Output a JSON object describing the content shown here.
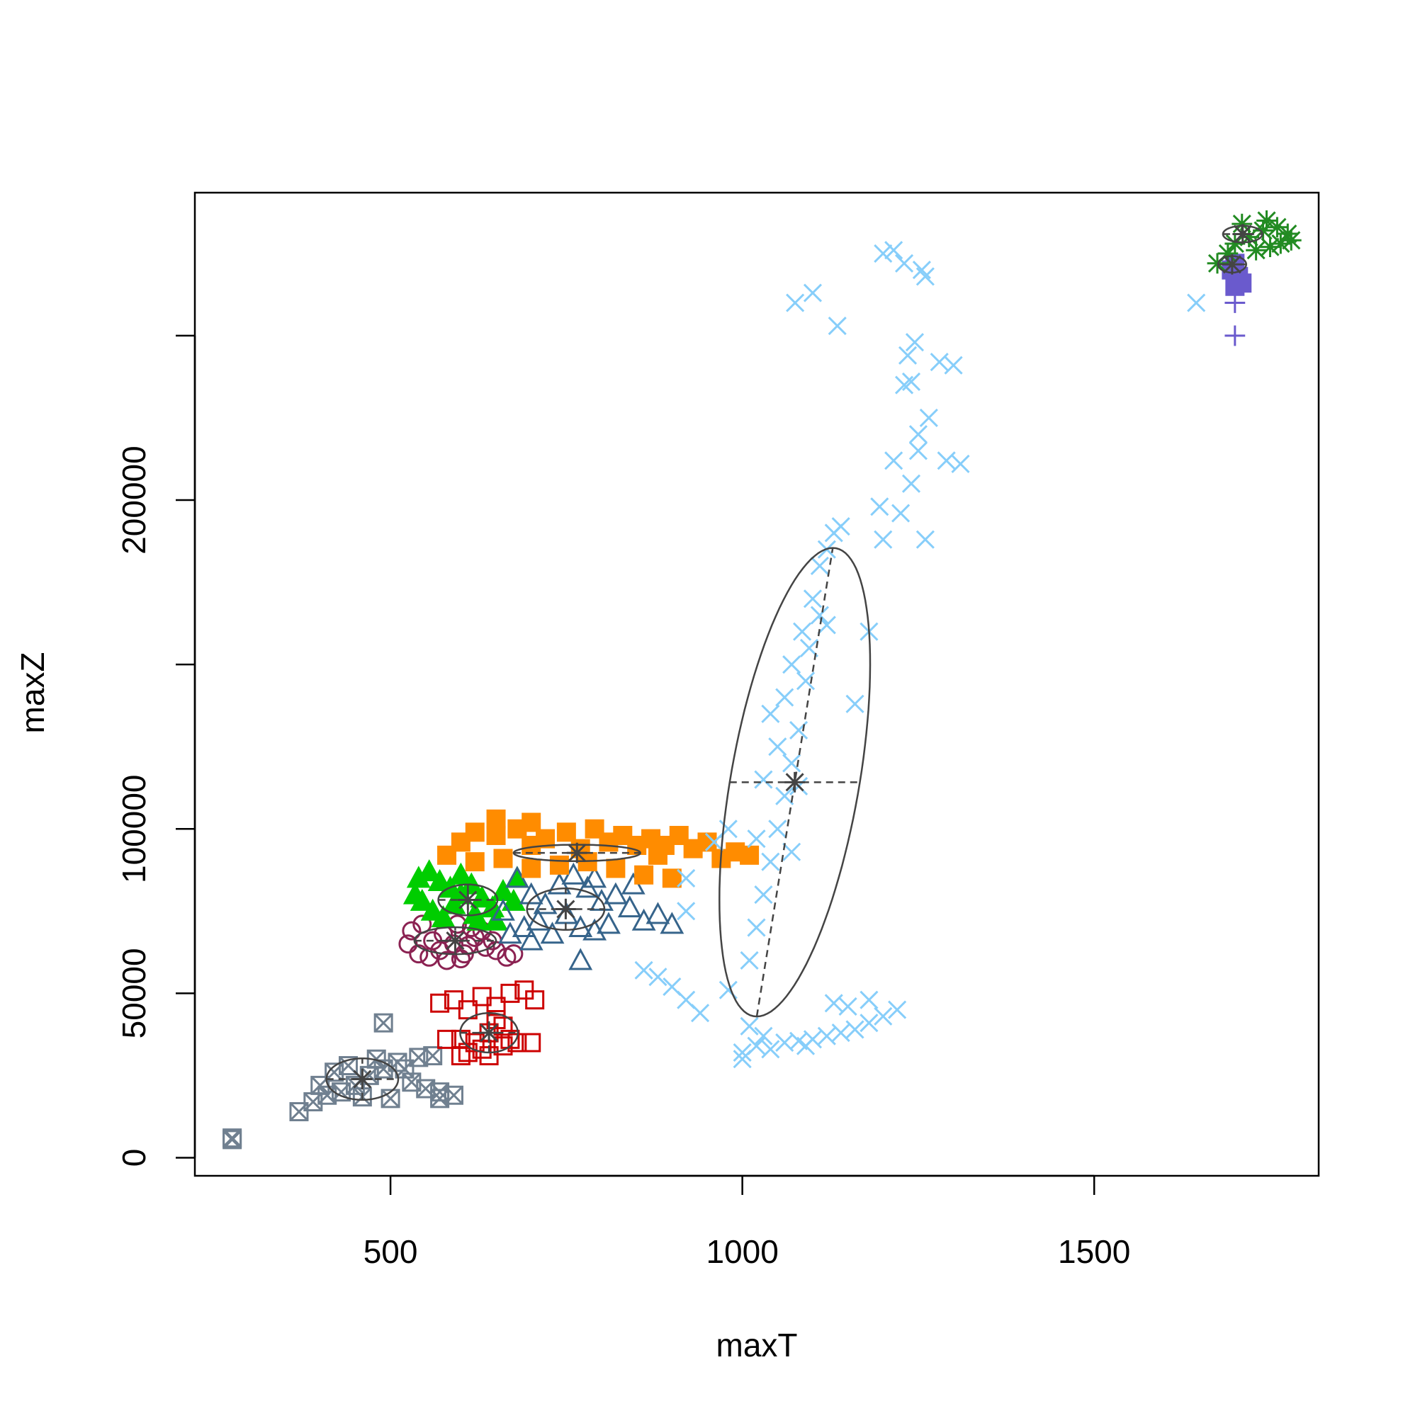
{
  "chart_data": {
    "type": "scatter",
    "xlabel": "maxT",
    "ylabel": "maxZ",
    "xlim": [
      222,
      1819
    ],
    "ylim": [
      -5500,
      293500
    ],
    "xticks": [
      500,
      1000,
      1500
    ],
    "yticks": [
      0,
      50000,
      100000,
      200000
    ],
    "yticks_unlabeled": [
      150000,
      250000
    ],
    "series": [
      {
        "color": "#708090",
        "marker": "square-x",
        "x": [
          275,
          275,
          370,
          390,
          410,
          430,
          450,
          470,
          490,
          480,
          510,
          530,
          550,
          570,
          590,
          490,
          540,
          560,
          420,
          440,
          460,
          500,
          400,
          520,
          570
        ],
        "y": [
          6000,
          5500,
          14000,
          17000,
          19000,
          20000,
          22000,
          25000,
          27000,
          30000,
          29000,
          23000,
          21000,
          20000,
          19000,
          41000,
          30500,
          31000,
          26000,
          28000,
          18500,
          18000,
          22000,
          27000,
          18000
        ],
        "ellipse": {
          "center": [
            460,
            23900
          ],
          "a1": [
            0,
            6300
          ],
          "a2": [
            51,
            0
          ]
        }
      },
      {
        "color": "#cd0000",
        "marker": "square",
        "x": [
          570,
          590,
          610,
          630,
          650,
          670,
          690,
          705,
          600,
          620,
          640,
          660,
          680,
          700,
          580,
          610,
          640,
          660,
          650,
          630,
          670,
          600
        ],
        "y": [
          47000,
          48000,
          45000,
          49000,
          46000,
          50000,
          51000,
          48000,
          36000,
          35000,
          38000,
          34000,
          35000,
          35000,
          36000,
          32000,
          31000,
          40000,
          42000,
          33000,
          36000,
          31000
        ],
        "ellipse": {
          "center": [
            640,
            38000
          ],
          "a1": [
            0,
            6000
          ],
          "a2": [
            41,
            0
          ]
        }
      },
      {
        "color": "#8b2252",
        "marker": "circle",
        "x": [
          530,
          545,
          560,
          575,
          590,
          605,
          620,
          635,
          650,
          665,
          675,
          540,
          555,
          580,
          600,
          615,
          630,
          645,
          525,
          570,
          595,
          610
        ],
        "y": [
          69000,
          71000,
          66000,
          68000,
          65000,
          62000,
          67000,
          64000,
          63000,
          61000,
          62000,
          62000,
          61000,
          60000,
          60500,
          70000,
          69000,
          66000,
          65000,
          63000,
          71000,
          64500
        ],
        "ellipse": {
          "center": [
            592,
            66000
          ],
          "a1": [
            0,
            4100
          ],
          "a2": [
            58,
            0
          ]
        }
      },
      {
        "color": "#00cd00",
        "marker": "triangle-filled",
        "x": [
          540,
          555,
          570,
          585,
          600,
          615,
          630,
          645,
          660,
          675,
          545,
          560,
          575,
          590,
          620,
          650,
          680,
          535,
          600,
          625
        ],
        "y": [
          85000,
          87000,
          84000,
          82000,
          80000,
          83000,
          79000,
          76000,
          81000,
          78000,
          78000,
          75000,
          73000,
          77000,
          74000,
          72000,
          85000,
          80000,
          86000,
          72000
        ],
        "ellipse": {
          "center": [
            610,
            78400
          ],
          "a1": [
            0,
            4700
          ],
          "a2": [
            42,
            0
          ]
        }
      },
      {
        "color": "#36648b",
        "marker": "triangle",
        "x": [
          660,
          680,
          700,
          720,
          740,
          760,
          780,
          800,
          820,
          840,
          860,
          880,
          900,
          690,
          710,
          730,
          750,
          770,
          790,
          810,
          770,
          670,
          845,
          700,
          790
        ],
        "y": [
          75000,
          85000,
          80000,
          77000,
          83000,
          86000,
          82000,
          78000,
          80000,
          76000,
          72000,
          74000,
          71000,
          70000,
          72000,
          68000,
          74000,
          70000,
          69000,
          71000,
          60000,
          68000,
          83000,
          66000,
          85000
        ],
        "ellipse": {
          "center": [
            749,
            75600
          ],
          "a1": [
            0,
            6300
          ],
          "a2": [
            55,
            0
          ]
        }
      },
      {
        "color": "#ff8c00",
        "marker": "square-filled",
        "x": [
          600,
          620,
          650,
          680,
          700,
          720,
          750,
          770,
          790,
          810,
          830,
          850,
          870,
          890,
          910,
          930,
          950,
          970,
          990,
          1010,
          580,
          620,
          660,
          700,
          740,
          780,
          820,
          860,
          900,
          880,
          650,
          700
        ],
        "y": [
          96000,
          99000,
          98000,
          100000,
          95000,
          97000,
          99000,
          94000,
          100000,
          96000,
          98000,
          95000,
          97000,
          95000,
          98000,
          94000,
          96000,
          91000,
          93000,
          92000,
          92000,
          90000,
          91000,
          88000,
          89000,
          90000,
          88000,
          86000,
          85000,
          92000,
          103000,
          102000
        ],
        "ellipse": {
          "center": [
            765,
            92700
          ],
          "a1": [
            0,
            2500
          ],
          "a2": [
            90,
            0
          ]
        }
      },
      {
        "color": "#87cefa",
        "marker": "x",
        "x": [
          1000,
          1020,
          1040,
          1060,
          1080,
          1100,
          1120,
          1140,
          1160,
          1180,
          1200,
          1220,
          1130,
          1180,
          1150,
          1010,
          1030,
          980,
          1000,
          1090,
          880,
          900,
          920,
          940,
          860,
          1010,
          1020,
          1030,
          1040,
          1050,
          1060,
          1070,
          1080,
          1050,
          1060,
          1070,
          1085,
          1100,
          1110,
          1120,
          1130,
          1140,
          1040,
          1030,
          1090,
          1095,
          1110,
          1180,
          1160,
          1120,
          1020,
          980,
          960,
          920,
          920,
          1070,
          1080,
          1195,
          1200,
          1225,
          1240,
          1260,
          1250,
          1265,
          1290,
          1310,
          1215,
          1230,
          1245,
          1280,
          1235,
          1240,
          1300,
          1250,
          1075,
          1100,
          1135,
          1215,
          1230,
          1255,
          1260,
          1200,
          1645
        ],
        "y": [
          32000,
          34000,
          33000,
          35000,
          35500,
          36000,
          37000,
          38000,
          39000,
          41000,
          43000,
          45000,
          47000,
          48000,
          46000,
          40000,
          37000,
          51000,
          30000,
          34000,
          55000,
          52000,
          48000,
          44000,
          57000,
          60000,
          70000,
          80000,
          90000,
          100000,
          110000,
          120000,
          130000,
          125000,
          140000,
          150000,
          160000,
          170000,
          180000,
          185000,
          190000,
          192000,
          135000,
          115000,
          145000,
          155000,
          165000,
          160000,
          138000,
          162000,
          97000,
          100000,
          96000,
          85000,
          75000,
          93000,
          113000,
          198000,
          188000,
          196000,
          205000,
          188000,
          215000,
          225000,
          212000,
          211000,
          212000,
          235000,
          248000,
          242000,
          244000,
          236000,
          241000,
          220000,
          260000,
          263000,
          253000,
          276000,
          272000,
          270000,
          268000,
          275000,
          260000
        ],
        "ellipse": {
          "center": [
            1074.5,
            114200
          ],
          "a1": [
            54,
            71250
          ],
          "a2": [
            92.5,
            0
          ]
        }
      },
      {
        "color": "#6a5acd",
        "marker": "square-filled",
        "x": [
          1700,
          1705,
          1695,
          1710,
          1700
        ],
        "y": [
          265000,
          268000,
          270000,
          266000,
          272000
        ],
        "ellipse": {
          "center": [
            1696,
            271700
          ],
          "a1": [
            0,
            2500
          ],
          "a2": [
            20,
            0
          ]
        }
      },
      {
        "color": "#6a5acd",
        "marker": "plus",
        "x": [
          1700,
          1700
        ],
        "y": [
          250000,
          260000
        ]
      },
      {
        "color": "#228b22",
        "marker": "star",
        "x": [
          1675,
          1700,
          1720,
          1740,
          1760,
          1775,
          1780,
          1750,
          1730,
          1710,
          1690,
          1765,
          1745
        ],
        "y": [
          272000,
          278000,
          280000,
          282000,
          283000,
          281000,
          279000,
          277000,
          276000,
          284000,
          275000,
          278000,
          285000
        ],
        "ellipse": {
          "center": [
            1711,
            280900
          ],
          "a1": [
            0,
            2500
          ],
          "a2": [
            28,
            0
          ]
        }
      }
    ]
  }
}
